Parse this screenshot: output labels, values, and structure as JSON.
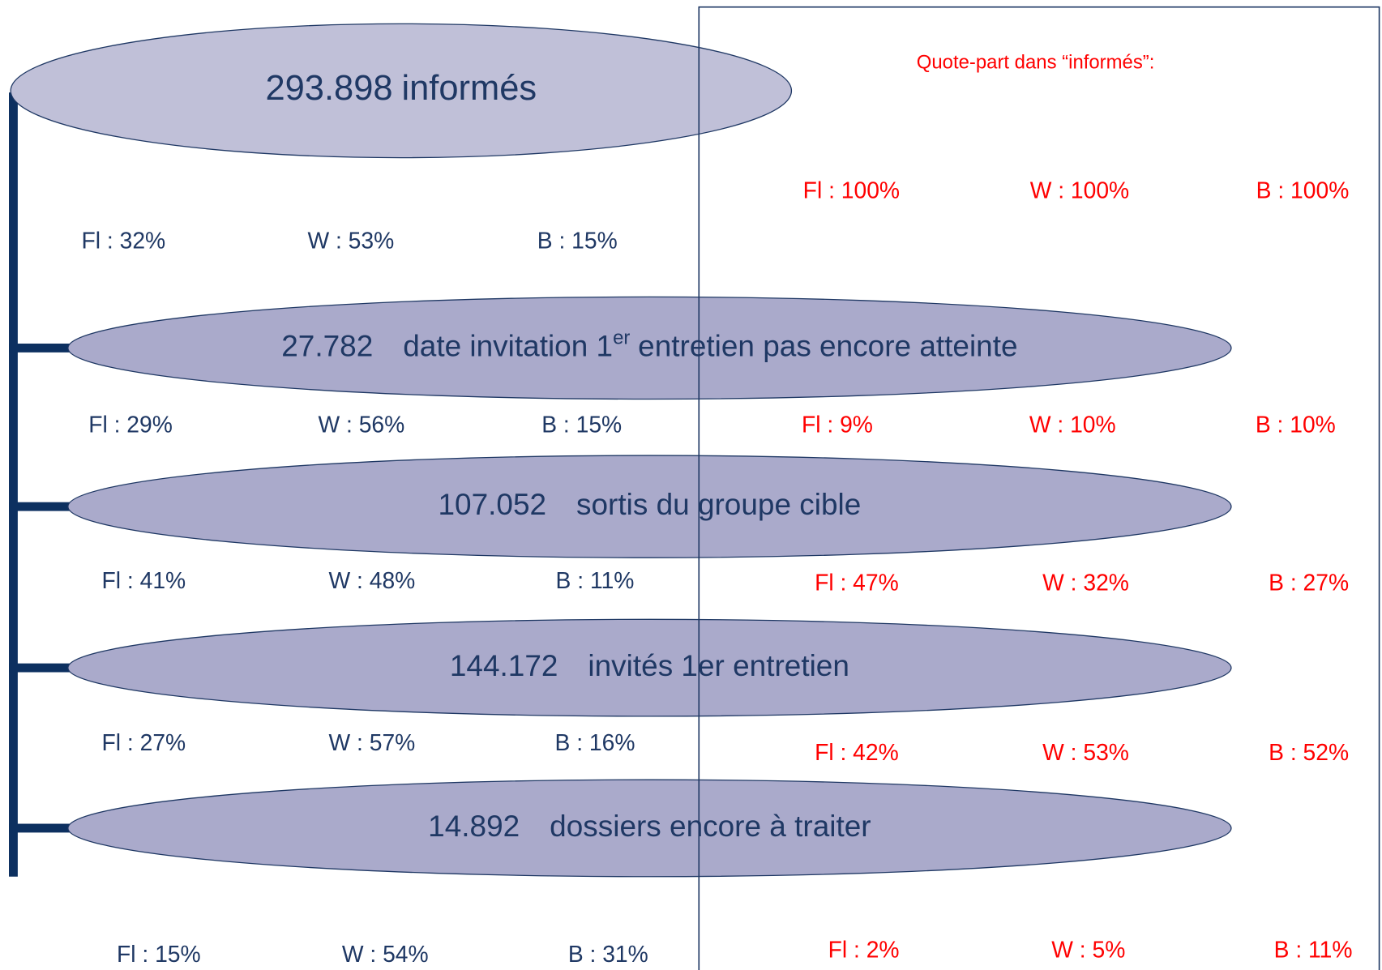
{
  "quote_title": "Quote-part dans “informés”:",
  "nodes": [
    {
      "count": "293.898",
      "label": "informés",
      "left": [
        "Fl : 32%",
        "W : 53%",
        "B : 15%"
      ],
      "right": [
        "Fl : 100%",
        "W : 100%",
        "B : 100%"
      ]
    },
    {
      "count": "27.782",
      "label": "date invitation 1",
      "sup": "er",
      "label_end": "entretien pas encore atteinte",
      "left": [
        "Fl : 29%",
        "W : 56%",
        "B : 15%"
      ],
      "right": [
        "Fl : 9%",
        "W : 10%",
        "B : 10%"
      ]
    },
    {
      "count": "107.052",
      "label": "sortis du groupe cible",
      "left": [
        "Fl : 41%",
        "W : 48%",
        "B : 11%"
      ],
      "right": [
        "Fl : 47%",
        "W : 32%",
        "B : 27%"
      ]
    },
    {
      "count": "144.172",
      "label": "invités 1er entretien",
      "left": [
        "Fl : 27%",
        "W : 57%",
        "B : 16%"
      ],
      "right": [
        "Fl : 42%",
        "W : 53%",
        "B : 52%"
      ]
    },
    {
      "count": "14.892",
      "label": "dossiers encore à traiter",
      "left": [
        "Fl : 15%",
        "W : 54%",
        "B : 31%"
      ],
      "right": [
        "Fl : 2%",
        "W : 5%",
        "B : 11%"
      ]
    }
  ]
}
